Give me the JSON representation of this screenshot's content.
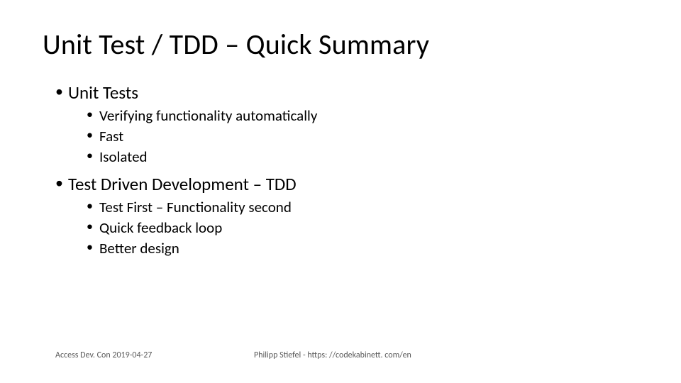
{
  "title": "Unit Test / TDD – Quick Summary",
  "bullets": [
    {
      "label": "Unit Tests",
      "sub": [
        "Verifying functionality automatically",
        "Fast",
        "Isolated"
      ]
    },
    {
      "label": "Test Driven Development – TDD",
      "sub": [
        "Test First – Functionality second",
        "Quick feedback loop",
        "Better design"
      ]
    }
  ],
  "footer": {
    "left": "Access Dev. Con 2019-04-27",
    "right": "Philipp Stiefel - https: //codekabinett. com/en"
  },
  "style": {
    "background": "#ffffff",
    "text_color": "#000000",
    "footer_color": "#595959",
    "title_fontsize": 40,
    "level1_fontsize": 25,
    "level2_fontsize": 21,
    "footer_fontsize": 12,
    "font_family": "Calibri"
  }
}
